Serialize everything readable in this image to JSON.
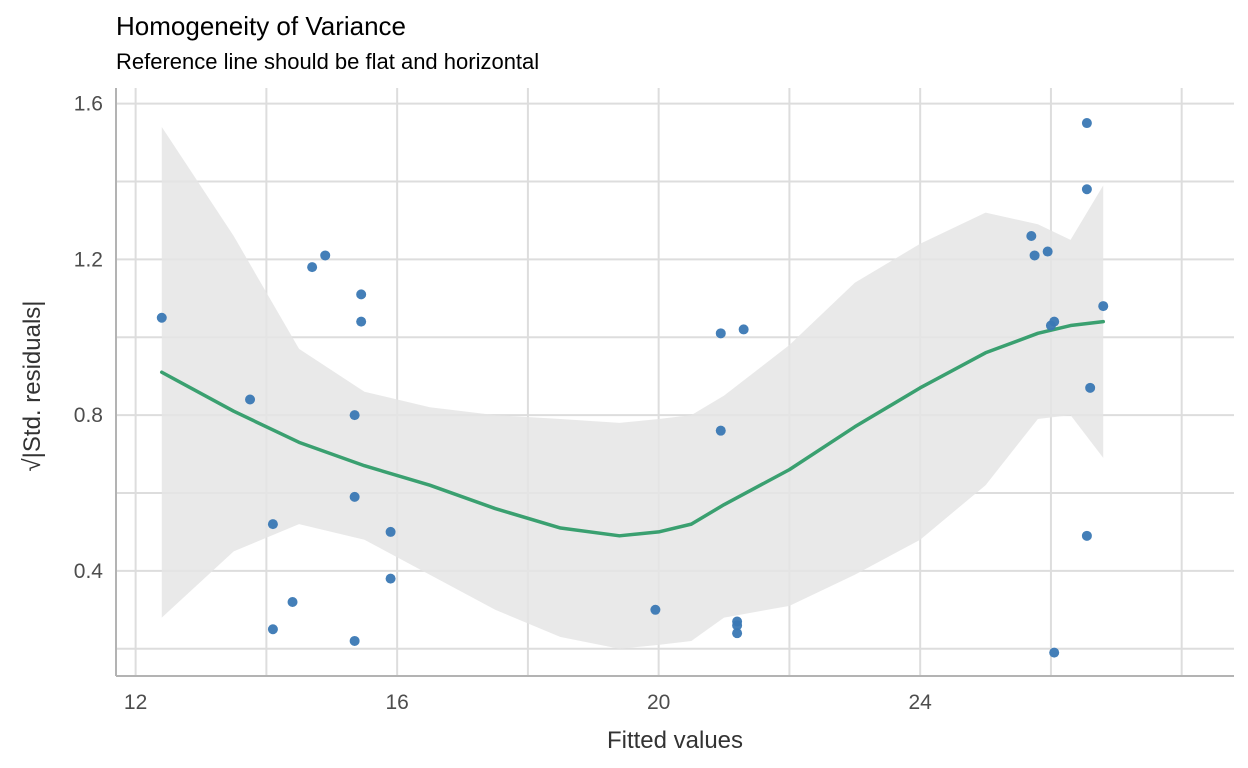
{
  "chart_data": {
    "type": "scatter",
    "title": "Homogeneity of Variance",
    "subtitle": "Reference line should be flat and horizontal",
    "xlabel": "Fitted values",
    "ylabel": "√|Std. residuals|",
    "xlim": [
      11.7,
      28.8
    ],
    "ylim": [
      0.13,
      1.64
    ],
    "x_ticks": [
      12,
      16,
      20,
      24
    ],
    "x_tick_labels": [
      "12",
      "16",
      "20",
      "24"
    ],
    "y_ticks": [
      0.4,
      0.8,
      1.2,
      1.6
    ],
    "y_tick_labels": [
      "0.4",
      "0.8",
      "1.2",
      "1.6"
    ],
    "grid": true,
    "colors": {
      "points": "#3a78b4",
      "line": "#3aa070",
      "band": "#e5e5e5",
      "grid": "#dddddd"
    },
    "points": [
      {
        "x": 12.4,
        "y": 1.05
      },
      {
        "x": 13.75,
        "y": 0.84
      },
      {
        "x": 14.1,
        "y": 0.52
      },
      {
        "x": 14.1,
        "y": 0.25
      },
      {
        "x": 14.4,
        "y": 0.32
      },
      {
        "x": 14.7,
        "y": 1.18
      },
      {
        "x": 14.9,
        "y": 1.21
      },
      {
        "x": 15.35,
        "y": 0.8
      },
      {
        "x": 15.35,
        "y": 0.59
      },
      {
        "x": 15.35,
        "y": 0.22
      },
      {
        "x": 15.45,
        "y": 1.11
      },
      {
        "x": 15.45,
        "y": 1.04
      },
      {
        "x": 15.9,
        "y": 0.5
      },
      {
        "x": 15.9,
        "y": 0.38
      },
      {
        "x": 19.95,
        "y": 0.3
      },
      {
        "x": 20.95,
        "y": 1.01
      },
      {
        "x": 20.95,
        "y": 0.76
      },
      {
        "x": 21.2,
        "y": 0.27
      },
      {
        "x": 21.2,
        "y": 0.26
      },
      {
        "x": 21.2,
        "y": 0.24
      },
      {
        "x": 21.3,
        "y": 1.02
      },
      {
        "x": 25.7,
        "y": 1.26
      },
      {
        "x": 25.75,
        "y": 1.21
      },
      {
        "x": 25.95,
        "y": 1.22
      },
      {
        "x": 26.0,
        "y": 1.03
      },
      {
        "x": 26.05,
        "y": 1.04
      },
      {
        "x": 26.05,
        "y": 0.19
      },
      {
        "x": 26.55,
        "y": 1.55
      },
      {
        "x": 26.55,
        "y": 1.38
      },
      {
        "x": 26.55,
        "y": 0.49
      },
      {
        "x": 26.6,
        "y": 0.87
      },
      {
        "x": 26.8,
        "y": 1.08
      }
    ],
    "smooth": {
      "x": [
        12.4,
        13.5,
        14.5,
        15.5,
        16.5,
        17.5,
        18.5,
        19.4,
        20.0,
        20.5,
        21.0,
        22.0,
        23.0,
        24.0,
        25.0,
        25.8,
        26.3,
        26.8
      ],
      "y": [
        0.91,
        0.81,
        0.73,
        0.67,
        0.62,
        0.56,
        0.51,
        0.49,
        0.5,
        0.52,
        0.57,
        0.66,
        0.77,
        0.87,
        0.96,
        1.01,
        1.03,
        1.04
      ],
      "lower": [
        0.28,
        0.45,
        0.52,
        0.48,
        0.39,
        0.3,
        0.23,
        0.2,
        0.21,
        0.22,
        0.28,
        0.31,
        0.39,
        0.48,
        0.62,
        0.79,
        0.8,
        0.69
      ],
      "upper": [
        1.54,
        1.26,
        0.97,
        0.86,
        0.82,
        0.8,
        0.79,
        0.78,
        0.79,
        0.8,
        0.85,
        0.98,
        1.14,
        1.24,
        1.32,
        1.29,
        1.25,
        1.39
      ]
    }
  }
}
